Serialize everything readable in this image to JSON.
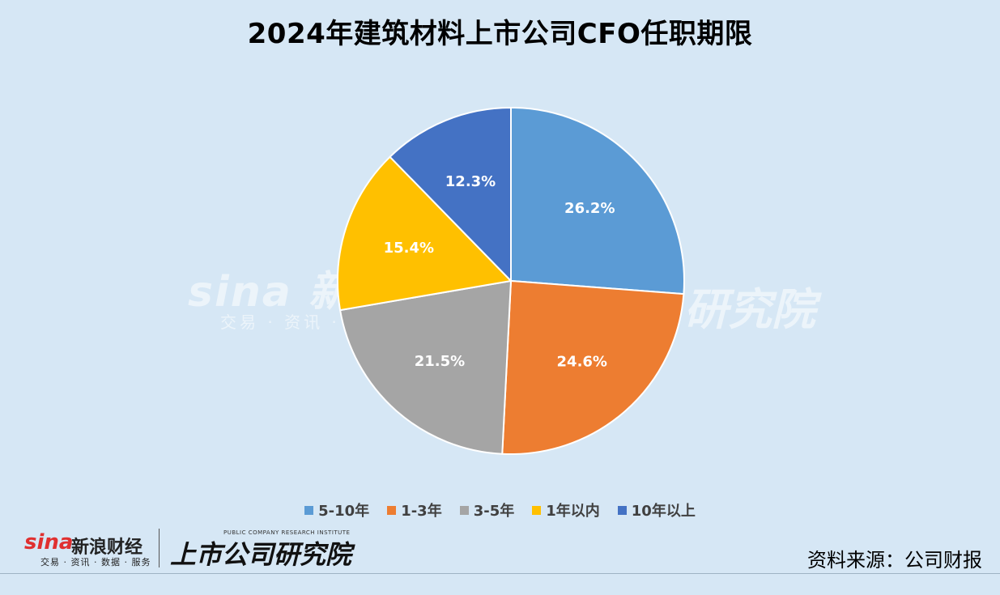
{
  "title": "2024年建筑材料上市公司CFO任职期限",
  "watermark": {
    "brand": "sina 新浪",
    "sub": "交易 · 资讯 ·",
    "right": "研究院"
  },
  "footer": {
    "logo_sina": "sina",
    "logo_sina_cn": "新浪财经",
    "logo_sina_sub": "交易 · 资讯 · 数据 · 服务",
    "logo_research": "上市公司研究院",
    "logo_research_en": "PUBLIC COMPANY RESEARCH INSTITUTE",
    "source": "资料来源：公司财报"
  },
  "chart_data": {
    "type": "pie",
    "title": "2024年建筑材料上市公司CFO任职期限",
    "legend_position": "bottom",
    "slices": [
      {
        "label": "5-10年",
        "value": 26.2,
        "display": "26.2%",
        "color": "#5b9bd5"
      },
      {
        "label": "1-3年",
        "value": 24.6,
        "display": "24.6%",
        "color": "#ed7d31"
      },
      {
        "label": "3-5年",
        "value": 21.5,
        "display": "21.5%",
        "color": "#a5a5a5"
      },
      {
        "label": "1年以内",
        "value": 15.4,
        "display": "15.4%",
        "color": "#ffc000"
      },
      {
        "label": "10年以上",
        "value": 12.3,
        "display": "12.3%",
        "color": "#4472c4"
      }
    ]
  }
}
